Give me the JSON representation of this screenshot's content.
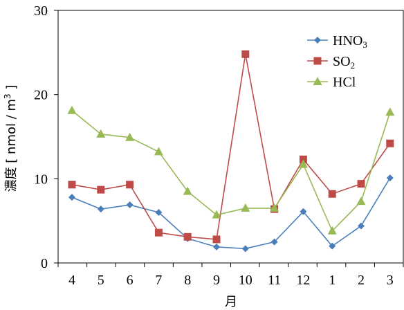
{
  "chart_data": {
    "type": "line",
    "categories": [
      "4",
      "5",
      "6",
      "7",
      "8",
      "9",
      "10",
      "11",
      "12",
      "1",
      "2",
      "3"
    ],
    "xlabel": "月",
    "ylabel": "濃度 [ nmol / m³ ]",
    "ylabel_parts": {
      "main": "濃度 [ nmol / m",
      "sup": "3",
      "tail": " ]"
    },
    "ylim": [
      0,
      30
    ],
    "yticks": [
      0,
      10,
      20,
      30
    ],
    "grid": false,
    "legend_position": "top-right",
    "series": [
      {
        "name": "HNO3",
        "label_main": "HNO",
        "label_sub": "3",
        "color": "#4a7ebb",
        "marker": "diamond",
        "values": [
          7.8,
          6.4,
          6.9,
          6.0,
          2.9,
          1.9,
          1.7,
          2.5,
          6.1,
          2.0,
          4.4,
          10.1
        ]
      },
      {
        "name": "SO2",
        "label_main": "SO",
        "label_sub": "2",
        "color": "#be4b48",
        "marker": "square",
        "values": [
          9.3,
          8.7,
          9.3,
          3.6,
          3.1,
          2.8,
          24.8,
          6.4,
          12.3,
          8.2,
          9.4,
          14.2
        ]
      },
      {
        "name": "HCl",
        "label_main": "HCl",
        "label_sub": "",
        "color": "#98b954",
        "marker": "triangle",
        "values": [
          18.1,
          15.3,
          14.9,
          13.2,
          8.5,
          5.7,
          6.5,
          6.5,
          11.7,
          3.8,
          7.3,
          17.9
        ]
      }
    ]
  }
}
